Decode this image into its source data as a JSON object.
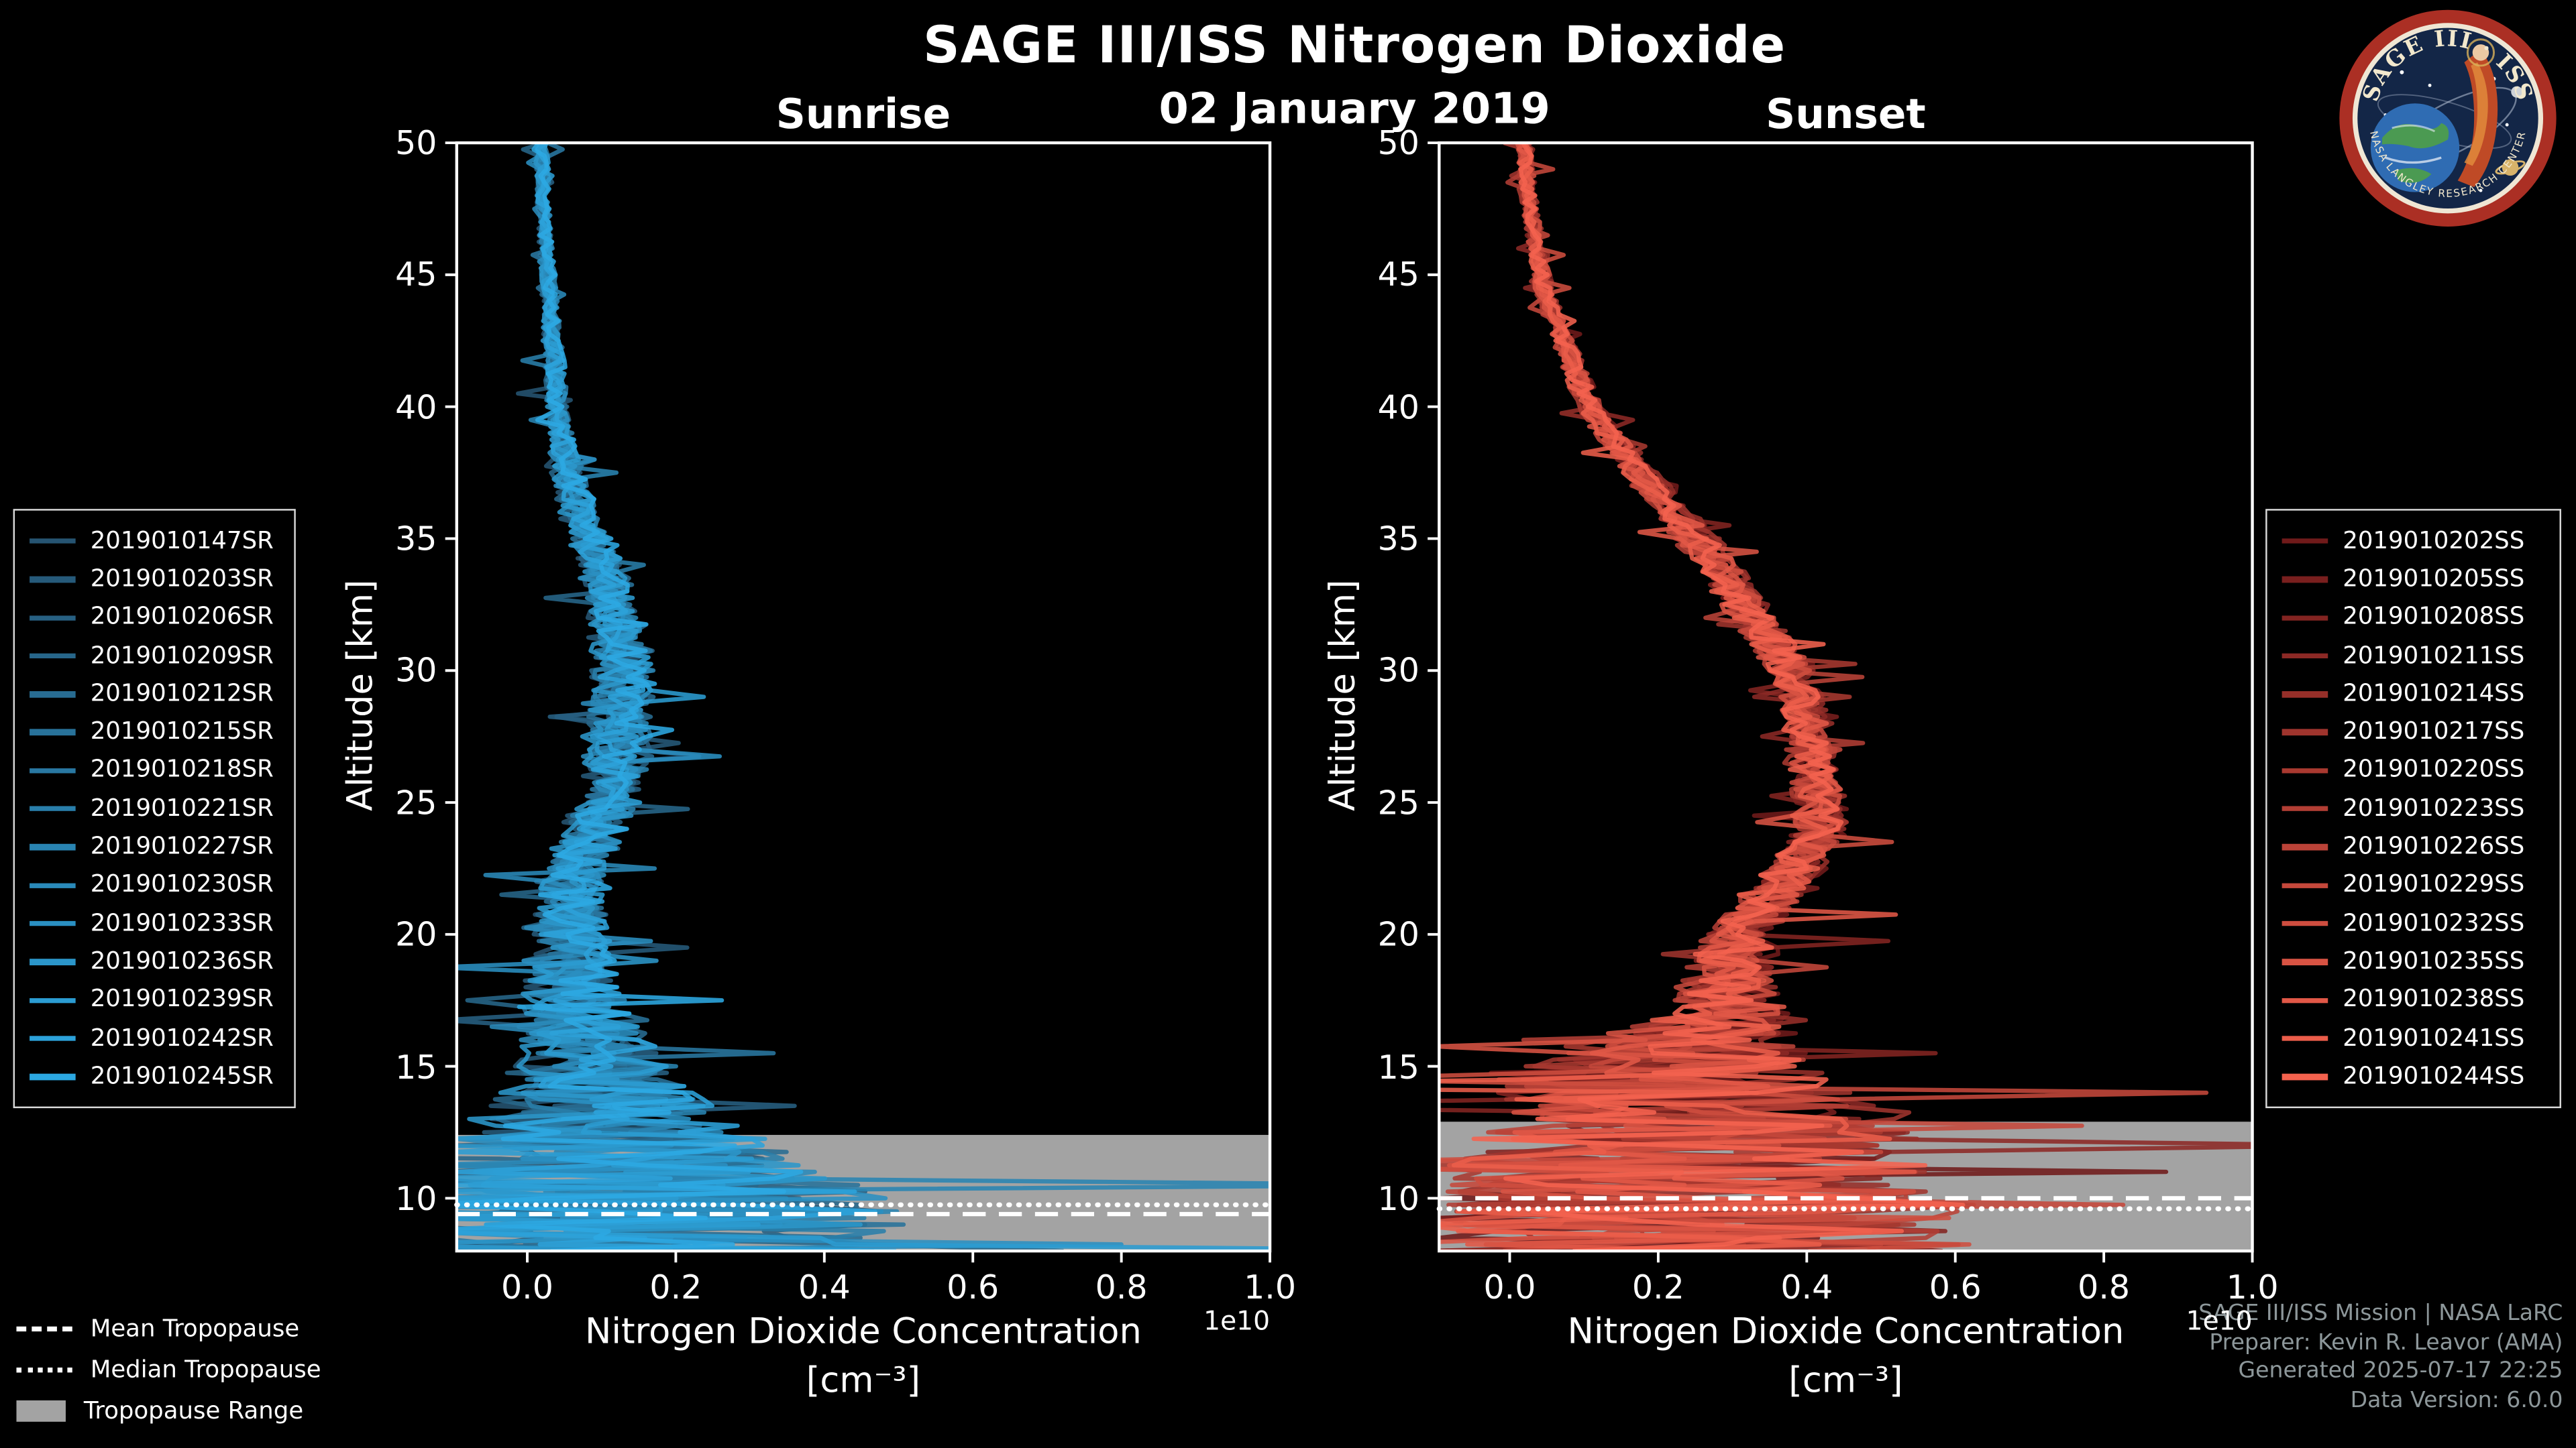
{
  "page": {
    "title": "SAGE III/ISS Nitrogen Dioxide",
    "date": "02 January 2019",
    "sunrise_label": "Sunrise",
    "sunset_label": "Sunset",
    "background_color": "#000000"
  },
  "logo": {
    "top_text": "SAGE III · ISS",
    "bottom_text": "NASA LANGLEY RESEARCH CENTER"
  },
  "credits": {
    "lines": [
      "SAGE III/ISS Mission | NASA LaRC",
      "Preparer: Kevin R. Leavor (AMA)",
      "Generated 2025-07-17 22:25",
      "Data Version: 6.0.0"
    ]
  },
  "tropopause_legend": {
    "items": [
      {
        "style": "dashed",
        "label": "Mean Tropopause"
      },
      {
        "style": "dotted",
        "label": "Median Tropopause"
      },
      {
        "style": "fill",
        "label": "Tropopause Range"
      }
    ]
  },
  "chart_data": [
    {
      "type": "line",
      "panel": "sunrise",
      "title": "Sunrise",
      "xlabel": "Nitrogen Dioxide Concentration",
      "xlabel_units": "[cm⁻³]",
      "axis_offset_label": "1e10",
      "ylabel": "Altitude [km]",
      "xlim": [
        -0.095,
        1.0
      ],
      "ylim": [
        8,
        50
      ],
      "xticks": [
        0.0,
        0.2,
        0.4,
        0.6,
        0.8,
        1.0
      ],
      "yticks": [
        10,
        15,
        20,
        25,
        30,
        35,
        40,
        45,
        50
      ],
      "grid": false,
      "legend_position": "outside-left",
      "tropopause": {
        "mean_km": 9.4,
        "median_km": 9.75,
        "range_top_km": 12.4,
        "range_bottom_km": 8.0,
        "range_color": "#a3a3a3"
      },
      "series": [
        {
          "label": "2019010147SR",
          "color": "#265472"
        },
        {
          "label": "2019010203SR",
          "color": "#265a7a"
        },
        {
          "label": "2019010206SR",
          "color": "#276082"
        },
        {
          "label": "2019010209SR",
          "color": "#27668a"
        },
        {
          "label": "2019010212SR",
          "color": "#286c92"
        },
        {
          "label": "2019010215SR",
          "color": "#28729a"
        },
        {
          "label": "2019010218SR",
          "color": "#2978a2"
        },
        {
          "label": "2019010221SR",
          "color": "#297eaa"
        },
        {
          "label": "2019010227SR",
          "color": "#2984b2"
        },
        {
          "label": "2019010230SR",
          "color": "#2a8aba"
        },
        {
          "label": "2019010233SR",
          "color": "#2a90c2"
        },
        {
          "label": "2019010236SR",
          "color": "#2b96ca"
        },
        {
          "label": "2019010239SR",
          "color": "#2b9cd2"
        },
        {
          "label": "2019010242SR",
          "color": "#2ca2da"
        },
        {
          "label": "2019010245SR",
          "color": "#2ca8e2"
        }
      ],
      "mean_profile_km": [
        8,
        10,
        12,
        13,
        14,
        15,
        16,
        18,
        20,
        22,
        24,
        26,
        28,
        30,
        32,
        34,
        36,
        38,
        40,
        44,
        48,
        50
      ],
      "mean_profile_value_1e10": [
        0.15,
        0.14,
        0.11,
        0.1,
        0.09,
        0.09,
        0.08,
        0.06,
        0.05,
        0.06,
        0.09,
        0.12,
        0.12,
        0.13,
        0.12,
        0.1,
        0.07,
        0.05,
        0.04,
        0.03,
        0.02,
        0.02
      ],
      "noise_amp_km": [
        8,
        10,
        12,
        13,
        14,
        15,
        16,
        18,
        20,
        22,
        24,
        26,
        28,
        30,
        32,
        34,
        36,
        38,
        40,
        44,
        48,
        50
      ],
      "noise_amp_value_1e10": [
        0.38,
        0.34,
        0.24,
        0.16,
        0.12,
        0.1,
        0.08,
        0.06,
        0.05,
        0.045,
        0.04,
        0.04,
        0.045,
        0.04,
        0.035,
        0.03,
        0.025,
        0.018,
        0.014,
        0.01,
        0.008,
        0.008
      ]
    },
    {
      "type": "line",
      "panel": "sunset",
      "title": "Sunset",
      "xlabel": "Nitrogen Dioxide Concentration",
      "xlabel_units": "[cm⁻³]",
      "axis_offset_label": "1e10",
      "ylabel": "Altitude [km]",
      "xlim": [
        -0.095,
        1.0
      ],
      "ylim": [
        8,
        50
      ],
      "xticks": [
        0.0,
        0.2,
        0.4,
        0.6,
        0.8,
        1.0
      ],
      "yticks": [
        10,
        15,
        20,
        25,
        30,
        35,
        40,
        45,
        50
      ],
      "grid": false,
      "legend_position": "outside-right",
      "tropopause": {
        "mean_km": 10.0,
        "median_km": 9.6,
        "range_top_km": 12.9,
        "range_bottom_km": 8.0,
        "range_color": "#a3a3a3"
      },
      "series": [
        {
          "label": "2019010202SS",
          "color": "#701a1a"
        },
        {
          "label": "2019010205SS",
          "color": "#791f1e"
        },
        {
          "label": "2019010208SS",
          "color": "#832421"
        },
        {
          "label": "2019010211SS",
          "color": "#8c2925"
        },
        {
          "label": "2019010214SS",
          "color": "#962f29"
        },
        {
          "label": "2019010217SS",
          "color": "#9f342d"
        },
        {
          "label": "2019010220SS",
          "color": "#a93930"
        },
        {
          "label": "2019010223SS",
          "color": "#b23e34"
        },
        {
          "label": "2019010226SS",
          "color": "#bb4338"
        },
        {
          "label": "2019010229SS",
          "color": "#c5483b"
        },
        {
          "label": "2019010232SS",
          "color": "#ce4d3f"
        },
        {
          "label": "2019010235SS",
          "color": "#d85343"
        },
        {
          "label": "2019010238SS",
          "color": "#e15847"
        },
        {
          "label": "2019010241SS",
          "color": "#eb5d4a"
        },
        {
          "label": "2019010244SS",
          "color": "#f4624e"
        }
      ],
      "mean_profile_km": [
        8,
        10,
        12,
        13,
        14,
        15,
        16,
        17,
        18,
        20,
        22,
        24,
        26,
        28,
        30,
        32,
        34,
        36,
        38,
        40,
        42,
        44,
        46,
        48,
        50
      ],
      "mean_profile_value_1e10": [
        0.22,
        0.25,
        0.24,
        0.26,
        0.22,
        0.21,
        0.25,
        0.3,
        0.29,
        0.31,
        0.37,
        0.42,
        0.41,
        0.4,
        0.38,
        0.33,
        0.28,
        0.22,
        0.16,
        0.11,
        0.08,
        0.05,
        0.035,
        0.025,
        0.02
      ],
      "noise_amp_km": [
        8,
        10,
        12,
        13,
        14,
        15,
        16,
        17,
        18,
        20,
        22,
        24,
        26,
        28,
        30,
        32,
        34,
        36,
        38,
        40,
        42,
        44,
        46,
        48,
        50
      ],
      "noise_amp_value_1e10": [
        0.4,
        0.37,
        0.31,
        0.28,
        0.25,
        0.2,
        0.13,
        0.08,
        0.06,
        0.05,
        0.04,
        0.035,
        0.03,
        0.03,
        0.03,
        0.03,
        0.03,
        0.025,
        0.02,
        0.018,
        0.014,
        0.012,
        0.01,
        0.01,
        0.01
      ]
    }
  ]
}
